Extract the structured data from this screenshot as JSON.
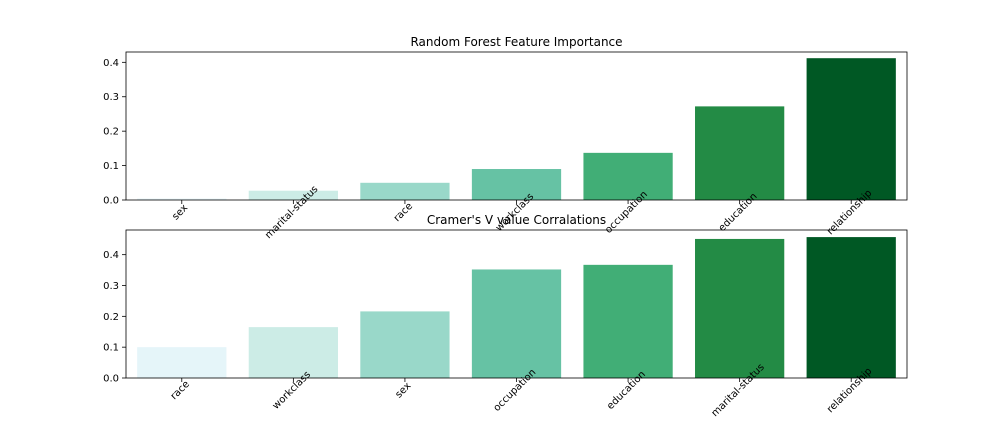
{
  "chart_data": [
    {
      "type": "bar",
      "title": "Random Forest Feature Importance",
      "xlabel": "",
      "ylabel": "",
      "categories": [
        "sex",
        "marital-status",
        "race",
        "workclass",
        "occupation",
        "education",
        "relationship"
      ],
      "values": [
        0.004,
        0.027,
        0.05,
        0.09,
        0.137,
        0.272,
        0.412
      ],
      "ylim": [
        0,
        0.43
      ],
      "yticks": [
        "0.0",
        "0.1",
        "0.2",
        "0.3",
        "0.4"
      ],
      "ytick_values": [
        0,
        0.1,
        0.2,
        0.3,
        0.4
      ],
      "colors": [
        "#e5f5f9",
        "#ccece6",
        "#99d8c9",
        "#66c2a4",
        "#41ae76",
        "#238b45",
        "#005824"
      ],
      "grid": false
    },
    {
      "type": "bar",
      "title": "Cramer's V value Corralations",
      "xlabel": "",
      "ylabel": "",
      "categories": [
        "race",
        "workclass",
        "sex",
        "occupation",
        "education",
        "marital-status",
        "relationship"
      ],
      "values": [
        0.1,
        0.165,
        0.216,
        0.352,
        0.367,
        0.451,
        0.457
      ],
      "ylim": [
        0,
        0.48
      ],
      "yticks": [
        "0.0",
        "0.1",
        "0.2",
        "0.3",
        "0.4"
      ],
      "ytick_values": [
        0,
        0.1,
        0.2,
        0.3,
        0.4
      ],
      "colors": [
        "#e5f5f9",
        "#ccece6",
        "#99d8c9",
        "#66c2a4",
        "#41ae76",
        "#238b45",
        "#005824"
      ],
      "grid": false
    }
  ]
}
